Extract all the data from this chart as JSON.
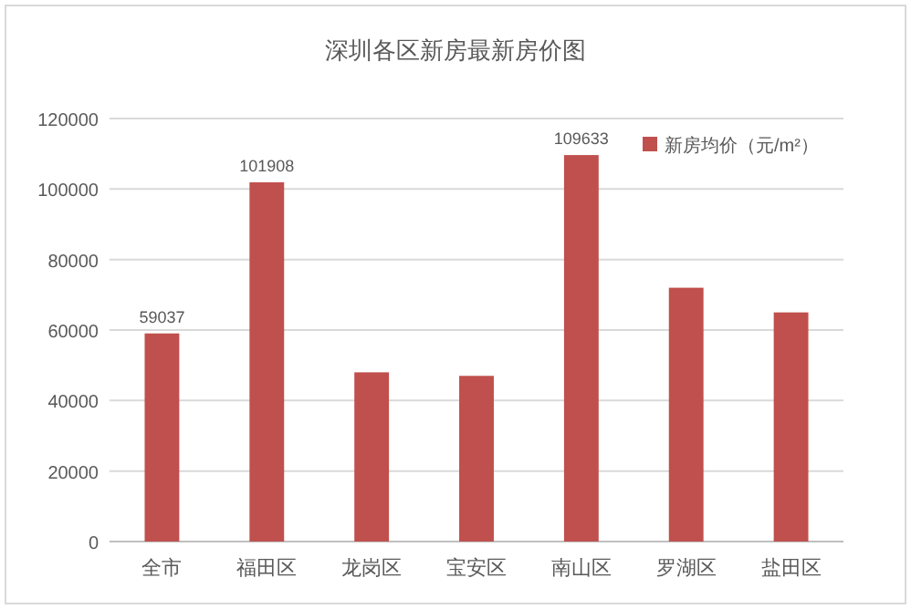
{
  "chart_data": {
    "type": "bar",
    "title": "深圳各区新房最新房价图",
    "categories": [
      "全市",
      "福田区",
      "龙岗区",
      "宝安区",
      "南山区",
      "罗湖区",
      "盐田区"
    ],
    "series": [
      {
        "name": "新房均价（元/m²）",
        "color": "#c0504d",
        "values": [
          59037,
          101908,
          48000,
          47000,
          109633,
          72000,
          65000
        ],
        "value_labels": [
          "59037",
          "101908",
          null,
          null,
          "109633",
          null,
          null
        ]
      }
    ],
    "ylim": [
      0,
      120000
    ],
    "yticks": [
      0,
      20000,
      40000,
      60000,
      80000,
      100000,
      120000
    ],
    "grid": "y",
    "legend": "top right"
  }
}
